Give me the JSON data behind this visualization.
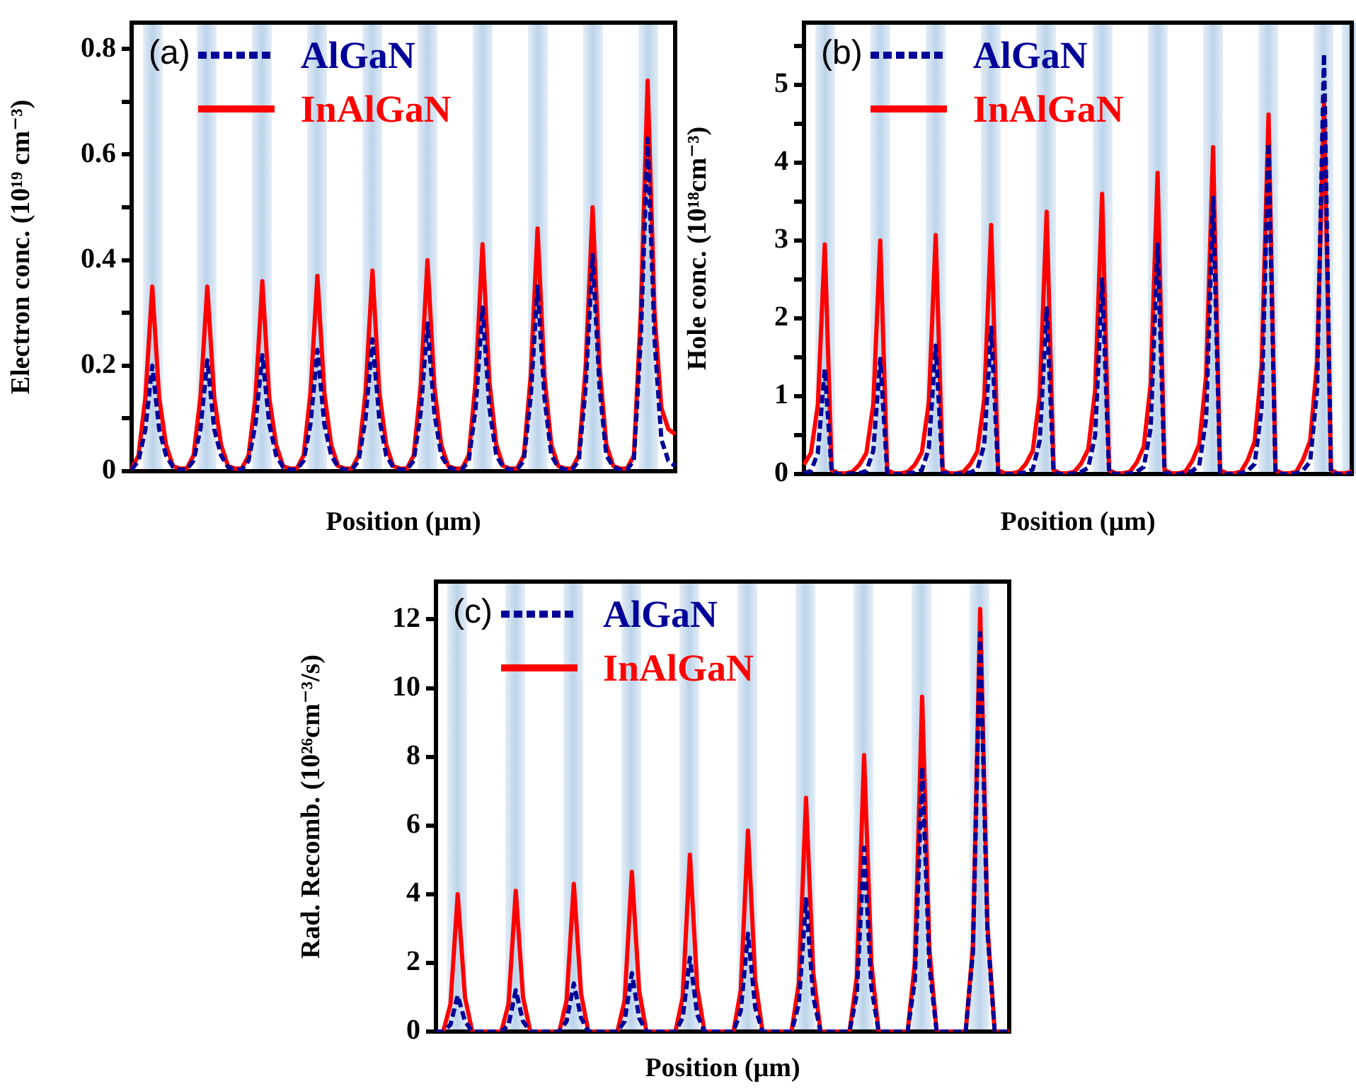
{
  "chart_data": [
    {
      "type": "line",
      "annotations": [
        "(a)"
      ],
      "xlabel": "Position (µm)",
      "ylabel": "Electron conc. (10¹⁹ cm⁻³)",
      "legend": "top left",
      "categories": [
        null,
        null,
        null,
        null,
        null,
        null,
        null,
        null,
        null,
        null,
        null,
        null,
        null,
        null,
        null,
        null,
        null,
        null,
        null,
        null,
        null,
        null,
        null,
        null,
        null,
        null,
        null,
        null,
        null,
        null,
        null,
        null,
        null,
        null,
        null,
        null,
        null,
        null,
        null,
        null,
        null,
        null,
        null,
        null,
        null,
        null,
        null,
        null,
        null,
        null,
        null,
        null,
        null,
        null,
        null,
        null,
        null,
        null,
        null,
        null,
        null,
        null,
        null,
        null,
        null,
        null,
        null,
        null,
        null,
        null,
        null,
        null,
        null,
        null,
        null,
        null,
        null,
        null,
        null,
        null
      ],
      "ylim": [
        0,
        0.85
      ],
      "yticks": [
        0,
        {
          "value": 0.1,
          "label": null
        },
        0.2,
        {
          "value": 0.3,
          "label": null
        },
        0.4,
        {
          "value": 0.5,
          "label": null
        },
        0.6,
        {
          "value": 0.7,
          "label": null
        },
        0.8
      ],
      "series": [
        {
          "name": "AlGaN",
          "color": "#000099",
          "line_style": "dashed",
          "values": [
            0.003,
            0.02,
            0.08,
            0.2,
            0.08,
            0.03,
            0.008,
            0.003,
            0.003,
            0.02,
            0.08,
            0.21,
            0.08,
            0.03,
            0.008,
            0.003,
            0.003,
            0.02,
            0.09,
            0.22,
            0.09,
            0.03,
            0.008,
            0.003,
            0.003,
            0.02,
            0.09,
            0.23,
            0.09,
            0.03,
            0.008,
            0.003,
            0.003,
            0.02,
            0.1,
            0.25,
            0.1,
            0.03,
            0.008,
            0.003,
            0.003,
            0.02,
            0.11,
            0.28,
            0.11,
            0.03,
            0.008,
            0.003,
            0.003,
            0.02,
            0.12,
            0.31,
            0.12,
            0.03,
            0.008,
            0.003,
            0.003,
            0.02,
            0.14,
            0.35,
            0.14,
            0.03,
            0.008,
            0.003,
            0.003,
            0.02,
            0.16,
            0.41,
            0.16,
            0.03,
            0.008,
            0.003,
            0.003,
            0.02,
            0.25,
            0.63,
            0.25,
            0.06,
            0.02,
            0.01
          ]
        },
        {
          "name": "InAlGaN",
          "color": "#ff0000",
          "line_style": "solid",
          "values": [
            0.005,
            0.03,
            0.14,
            0.35,
            0.14,
            0.05,
            0.01,
            0.005,
            0.005,
            0.03,
            0.14,
            0.35,
            0.14,
            0.05,
            0.01,
            0.005,
            0.005,
            0.03,
            0.14,
            0.36,
            0.14,
            0.05,
            0.01,
            0.005,
            0.005,
            0.03,
            0.15,
            0.37,
            0.15,
            0.05,
            0.01,
            0.005,
            0.005,
            0.03,
            0.15,
            0.38,
            0.15,
            0.05,
            0.01,
            0.005,
            0.005,
            0.03,
            0.16,
            0.4,
            0.16,
            0.05,
            0.01,
            0.005,
            0.005,
            0.03,
            0.17,
            0.43,
            0.17,
            0.05,
            0.01,
            0.005,
            0.005,
            0.03,
            0.18,
            0.46,
            0.18,
            0.05,
            0.01,
            0.005,
            0.005,
            0.03,
            0.2,
            0.5,
            0.2,
            0.05,
            0.01,
            0.005,
            0.005,
            0.03,
            0.3,
            0.74,
            0.3,
            0.12,
            0.08,
            0.07
          ]
        }
      ]
    },
    {
      "type": "line",
      "annotations": [
        "(b)"
      ],
      "xlabel": "Position (µm)",
      "ylabel": "Hole conc. (10¹⁸cm⁻³)",
      "legend": "top left",
      "categories": [
        null,
        null,
        null,
        null,
        null,
        null,
        null,
        null,
        null,
        null,
        null,
        null,
        null,
        null,
        null,
        null,
        null,
        null,
        null,
        null,
        null,
        null,
        null,
        null,
        null,
        null,
        null,
        null,
        null,
        null,
        null,
        null,
        null,
        null,
        null,
        null,
        null,
        null,
        null,
        null,
        null,
        null,
        null,
        null,
        null,
        null,
        null,
        null,
        null,
        null,
        null,
        null,
        null,
        null,
        null,
        null,
        null,
        null,
        null,
        null,
        null,
        null,
        null,
        null,
        null,
        null,
        null,
        null,
        null,
        null,
        null,
        null,
        null,
        null,
        null,
        null,
        null,
        null,
        null,
        null
      ],
      "ylim": [
        0,
        5.8
      ],
      "yticks": [
        0,
        {
          "value": 0.5,
          "label": null
        },
        1,
        {
          "value": 1.5,
          "label": null
        },
        2,
        {
          "value": 2.5,
          "label": null
        },
        3,
        {
          "value": 3.5,
          "label": null
        },
        4,
        {
          "value": 4.5,
          "label": null
        },
        5,
        {
          "value": 5.5,
          "label": null
        }
      ],
      "series": [
        {
          "name": "AlGaN",
          "color": "#000099",
          "line_style": "dashed",
          "values": [
            0.01,
            0.04,
            0.27,
            1.35,
            0.02,
            0,
            0,
            0.01,
            0.01,
            0.04,
            0.3,
            1.48,
            0.02,
            0,
            0,
            0.01,
            0.02,
            0.05,
            0.33,
            1.65,
            0.02,
            0,
            0,
            0.01,
            0.02,
            0.06,
            0.38,
            1.88,
            0.02,
            0,
            0,
            0.01,
            0.02,
            0.06,
            0.43,
            2.13,
            0.02,
            0,
            0,
            0.01,
            0.03,
            0.08,
            0.5,
            2.5,
            0.02,
            0,
            0,
            0.01,
            0.03,
            0.09,
            0.59,
            2.95,
            0.02,
            0,
            0,
            0.01,
            0.04,
            0.11,
            0.71,
            3.55,
            0.02,
            0,
            0,
            0.01,
            0.04,
            0.13,
            0.85,
            4.25,
            0.02,
            0,
            0,
            0.01,
            0.05,
            0.16,
            1.08,
            5.4,
            0.02,
            0,
            0,
            0.01
          ]
        },
        {
          "name": "InAlGaN",
          "color": "#ff0000",
          "line_style": "solid",
          "values": [
            0.12,
            0.27,
            0.89,
            2.95,
            0.05,
            0.01,
            0.01,
            0.03,
            0.12,
            0.27,
            0.9,
            3.0,
            0.05,
            0.01,
            0.01,
            0.03,
            0.12,
            0.28,
            0.92,
            3.07,
            0.05,
            0.01,
            0.01,
            0.03,
            0.13,
            0.29,
            0.96,
            3.2,
            0.05,
            0.01,
            0.01,
            0.03,
            0.13,
            0.3,
            1.01,
            3.37,
            0.05,
            0.01,
            0.01,
            0.03,
            0.14,
            0.32,
            1.08,
            3.6,
            0.05,
            0.01,
            0.01,
            0.03,
            0.15,
            0.35,
            1.16,
            3.87,
            0.05,
            0.01,
            0.01,
            0.03,
            0.17,
            0.38,
            1.26,
            4.2,
            0.05,
            0.01,
            0.01,
            0.03,
            0.18,
            0.42,
            1.39,
            4.62,
            0.05,
            0.01,
            0.01,
            0.03,
            0.19,
            0.43,
            1.44,
            4.8,
            0.05,
            0.01,
            0.01,
            0.03
          ]
        }
      ]
    },
    {
      "type": "line",
      "annotations": [
        "(c)"
      ],
      "xlabel": "Position (µm)",
      "ylabel": "Rad. Recomb. (10²⁶cm⁻³/s)",
      "legend": "top left",
      "categories": [
        null,
        null,
        null,
        null,
        null,
        null,
        null,
        null,
        null,
        null,
        null,
        null,
        null,
        null,
        null,
        null,
        null,
        null,
        null,
        null,
        null,
        null,
        null,
        null,
        null,
        null,
        null,
        null,
        null,
        null,
        null,
        null,
        null,
        null,
        null,
        null,
        null,
        null,
        null,
        null,
        null,
        null,
        null,
        null,
        null,
        null,
        null,
        null,
        null,
        null,
        null,
        null,
        null,
        null,
        null,
        null,
        null,
        null,
        null,
        null,
        null,
        null,
        null,
        null,
        null,
        null,
        null,
        null,
        null,
        null,
        null,
        null,
        null,
        null,
        null,
        null,
        null,
        null,
        null,
        null
      ],
      "ylim": [
        0,
        13.1
      ],
      "yticks": [
        0,
        2,
        4,
        6,
        8,
        10,
        12
      ],
      "series": [
        {
          "name": "AlGaN",
          "color": "#000099",
          "line_style": "dashed",
          "values": [
            0,
            0,
            0.2,
            1.05,
            0.3,
            0,
            0,
            0,
            0,
            0,
            0.2,
            1.2,
            0.3,
            0,
            0,
            0,
            0,
            0,
            0.3,
            1.4,
            0.4,
            0,
            0,
            0,
            0,
            0,
            0.3,
            1.7,
            0.4,
            0,
            0,
            0,
            0,
            0,
            0.4,
            2.15,
            0.5,
            0,
            0,
            0,
            0,
            0,
            0.6,
            2.85,
            0.7,
            0,
            0,
            0,
            0,
            0,
            0.8,
            3.85,
            1.0,
            0,
            0,
            0,
            0,
            0,
            1.1,
            5.35,
            1.3,
            0,
            0,
            0,
            0,
            0,
            1.5,
            7.7,
            1.9,
            0,
            0,
            0,
            0,
            0,
            2.3,
            11.6,
            2.9,
            0,
            0,
            0
          ]
        },
        {
          "name": "InAlGaN",
          "color": "#ff0000",
          "line_style": "solid",
          "values": [
            0,
            0,
            0.8,
            4.0,
            1.0,
            0,
            0,
            0,
            0,
            0,
            0.8,
            4.1,
            1.0,
            0,
            0,
            0,
            0,
            0,
            0.9,
            4.3,
            1.1,
            0,
            0,
            0,
            0,
            0,
            0.9,
            4.65,
            1.2,
            0,
            0,
            0,
            0,
            0,
            1.0,
            5.15,
            1.3,
            0,
            0,
            0,
            0,
            0,
            1.2,
            5.85,
            1.5,
            0,
            0,
            0,
            0,
            0,
            1.4,
            6.8,
            1.7,
            0,
            0,
            0,
            0,
            0,
            1.6,
            8.05,
            2.0,
            0,
            0,
            0,
            0,
            0,
            2.0,
            9.75,
            2.4,
            0,
            0,
            0,
            0,
            0,
            2.5,
            12.3,
            3.1,
            0,
            0,
            0
          ]
        }
      ]
    }
  ]
}
